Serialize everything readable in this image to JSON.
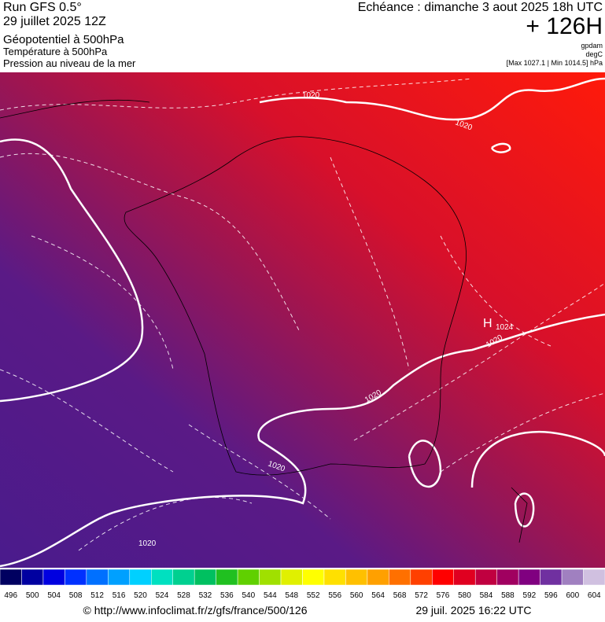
{
  "header": {
    "left": [
      "Run GFS 0.5°",
      "29 juillet 2025 12Z",
      "Géopotentiel à 500hPa",
      "Température à 500hPa",
      "Pression au niveau de la mer"
    ],
    "right": {
      "valid": "Echéance : dimanche 3 aout 2025 18h UTC",
      "lead": "+ 126H",
      "units": [
        "gpdam",
        "degC",
        "[Max 1027.1 | Min 1014.5] hPa"
      ]
    }
  },
  "map": {
    "labels": [
      "1020",
      "1020",
      "1020",
      "1020",
      "1020",
      "1020"
    ],
    "high": {
      "symbol": "H",
      "value": "1024"
    }
  },
  "colorbar": {
    "levels": [
      496,
      500,
      504,
      508,
      512,
      516,
      520,
      524,
      528,
      532,
      536,
      540,
      544,
      548,
      552,
      556,
      560,
      564,
      568,
      572,
      576,
      580,
      584,
      588,
      592,
      596,
      600,
      604
    ],
    "colors": [
      "#000060",
      "#0000a0",
      "#0000e0",
      "#0030ff",
      "#0070ff",
      "#00a0ff",
      "#00d0ff",
      "#00e0c0",
      "#00d090",
      "#00c060",
      "#20c020",
      "#60d000",
      "#a0e000",
      "#e0f000",
      "#ffff00",
      "#ffe000",
      "#ffc000",
      "#ffa000",
      "#ff7000",
      "#ff4000",
      "#ff0000",
      "#e00020",
      "#c00040",
      "#a00060",
      "#800080",
      "#7030a0",
      "#a080c0",
      "#d0c0e0"
    ]
  },
  "footer": {
    "source": "© http://www.infoclimat.fr/z/gfs/france/500/126",
    "time": "29 juil. 2025 16:22 UTC"
  }
}
